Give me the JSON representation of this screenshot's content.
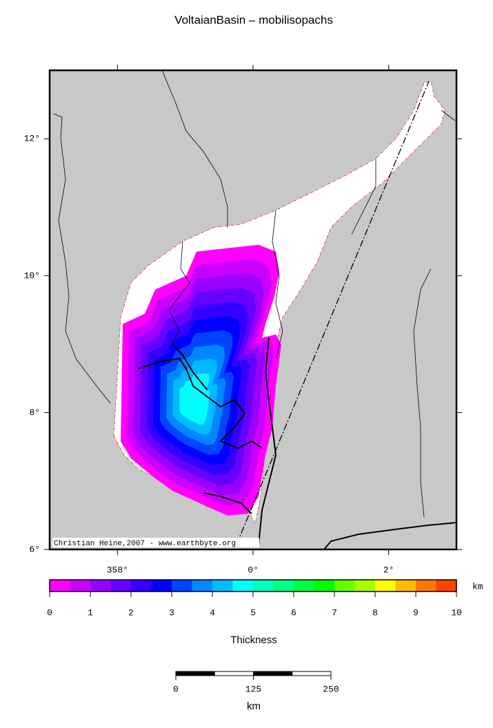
{
  "map": {
    "title": "VoltaianBasin – mobilisopachs",
    "credit": "Christian Heine,2007 - www.earthbyte.org",
    "lonlim": [
      -3,
      3
    ],
    "latlim": [
      6,
      13
    ],
    "lat_ticks": [
      {
        "value": 6,
        "label": "6°"
      },
      {
        "value": 8,
        "label": "8°"
      },
      {
        "value": 10,
        "label": "10°"
      },
      {
        "value": 12,
        "label": "12°"
      }
    ],
    "lon_ticks": [
      {
        "value": -2,
        "label": "358°"
      },
      {
        "value": 0,
        "label": "0°"
      },
      {
        "value": 2,
        "label": "2°"
      }
    ]
  },
  "colorbar": {
    "label": "Thickness",
    "unit": "km",
    "lim": [
      0,
      10
    ],
    "ticks": [
      0,
      1,
      2,
      3,
      4,
      5,
      6,
      7,
      8,
      9,
      10
    ],
    "colors": [
      "#ff00ff",
      "#cc00ff",
      "#9900ff",
      "#6600ff",
      "#3300ff",
      "#0000ff",
      "#0044ff",
      "#0088ff",
      "#00bbff",
      "#00ffff",
      "#00ffbb",
      "#00ff88",
      "#00ff44",
      "#00ff00",
      "#66ff00",
      "#aaff00",
      "#ffff00",
      "#ffbb00",
      "#ff7700",
      "#ff4400"
    ]
  },
  "scalebar": {
    "unit": "km",
    "lim": [
      0,
      250
    ],
    "ticks": [
      0,
      125,
      250
    ]
  }
}
